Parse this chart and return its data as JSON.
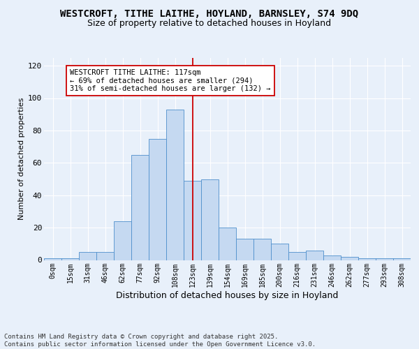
{
  "title1": "WESTCROFT, TITHE LAITHE, HOYLAND, BARNSLEY, S74 9DQ",
  "title2": "Size of property relative to detached houses in Hoyland",
  "xlabel": "Distribution of detached houses by size in Hoyland",
  "ylabel": "Number of detached properties",
  "categories": [
    "0sqm",
    "15sqm",
    "31sqm",
    "46sqm",
    "62sqm",
    "77sqm",
    "92sqm",
    "108sqm",
    "123sqm",
    "139sqm",
    "154sqm",
    "169sqm",
    "185sqm",
    "200sqm",
    "216sqm",
    "231sqm",
    "246sqm",
    "262sqm",
    "277sqm",
    "293sqm",
    "308sqm"
  ],
  "values": [
    1,
    1,
    5,
    5,
    24,
    65,
    75,
    93,
    49,
    50,
    20,
    13,
    13,
    10,
    5,
    6,
    3,
    2,
    1,
    1,
    1
  ],
  "bar_color": "#c5d9f1",
  "bar_edge_color": "#4e8fcc",
  "vline_color": "#cc0000",
  "annotation_title": "WESTCROFT TITHE LAITHE: 117sqm",
  "annotation_line1": "← 69% of detached houses are smaller (294)",
  "annotation_line2": "31% of semi-detached houses are larger (132) →",
  "annotation_box_color": "#cc0000",
  "annotation_box_fill": "#ffffff",
  "footer1": "Contains HM Land Registry data © Crown copyright and database right 2025.",
  "footer2": "Contains public sector information licensed under the Open Government Licence v3.0.",
  "bg_color": "#e8f0fa",
  "grid_color": "#ffffff",
  "ylim": [
    0,
    125
  ],
  "yticks": [
    0,
    20,
    40,
    60,
    80,
    100,
    120
  ],
  "title1_fontsize": 10,
  "title2_fontsize": 9,
  "xlabel_fontsize": 9,
  "ylabel_fontsize": 8,
  "tick_fontsize": 7,
  "annotation_fontsize": 7.5,
  "footer_fontsize": 6.5
}
